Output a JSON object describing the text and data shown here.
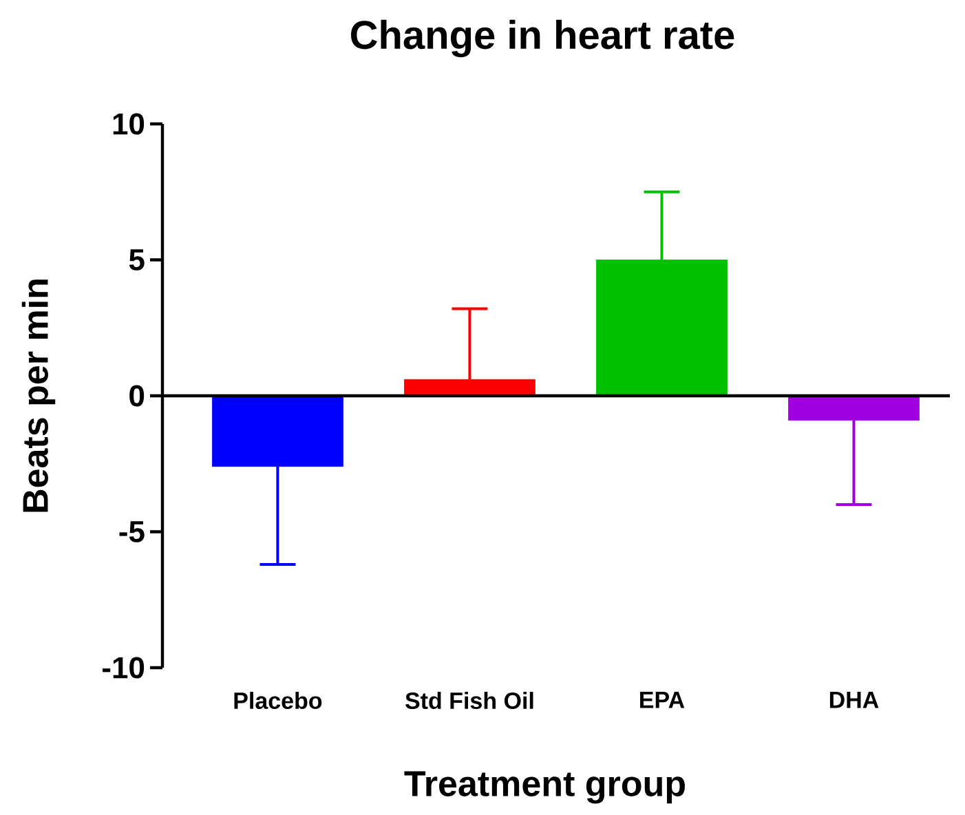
{
  "chart_data": {
    "type": "bar",
    "title": "Change in heart rate",
    "xlabel": "Treatment group",
    "ylabel": "Beats per min",
    "categories": [
      "Placebo",
      "Std Fish Oil",
      "EPA",
      "DHA"
    ],
    "values": [
      -2.6,
      0.6,
      5.0,
      -0.9
    ],
    "colors": [
      "#0000ff",
      "#ff0000",
      "#00c000",
      "#a000e0"
    ],
    "errors": [
      [
        -6.2,
        -2.6
      ],
      [
        0.6,
        3.2
      ],
      [
        5.0,
        7.5
      ],
      [
        -4.0,
        -0.9
      ]
    ],
    "ylim": [
      -10,
      10
    ],
    "yticks": [
      -10,
      -5,
      0,
      5,
      10
    ]
  }
}
